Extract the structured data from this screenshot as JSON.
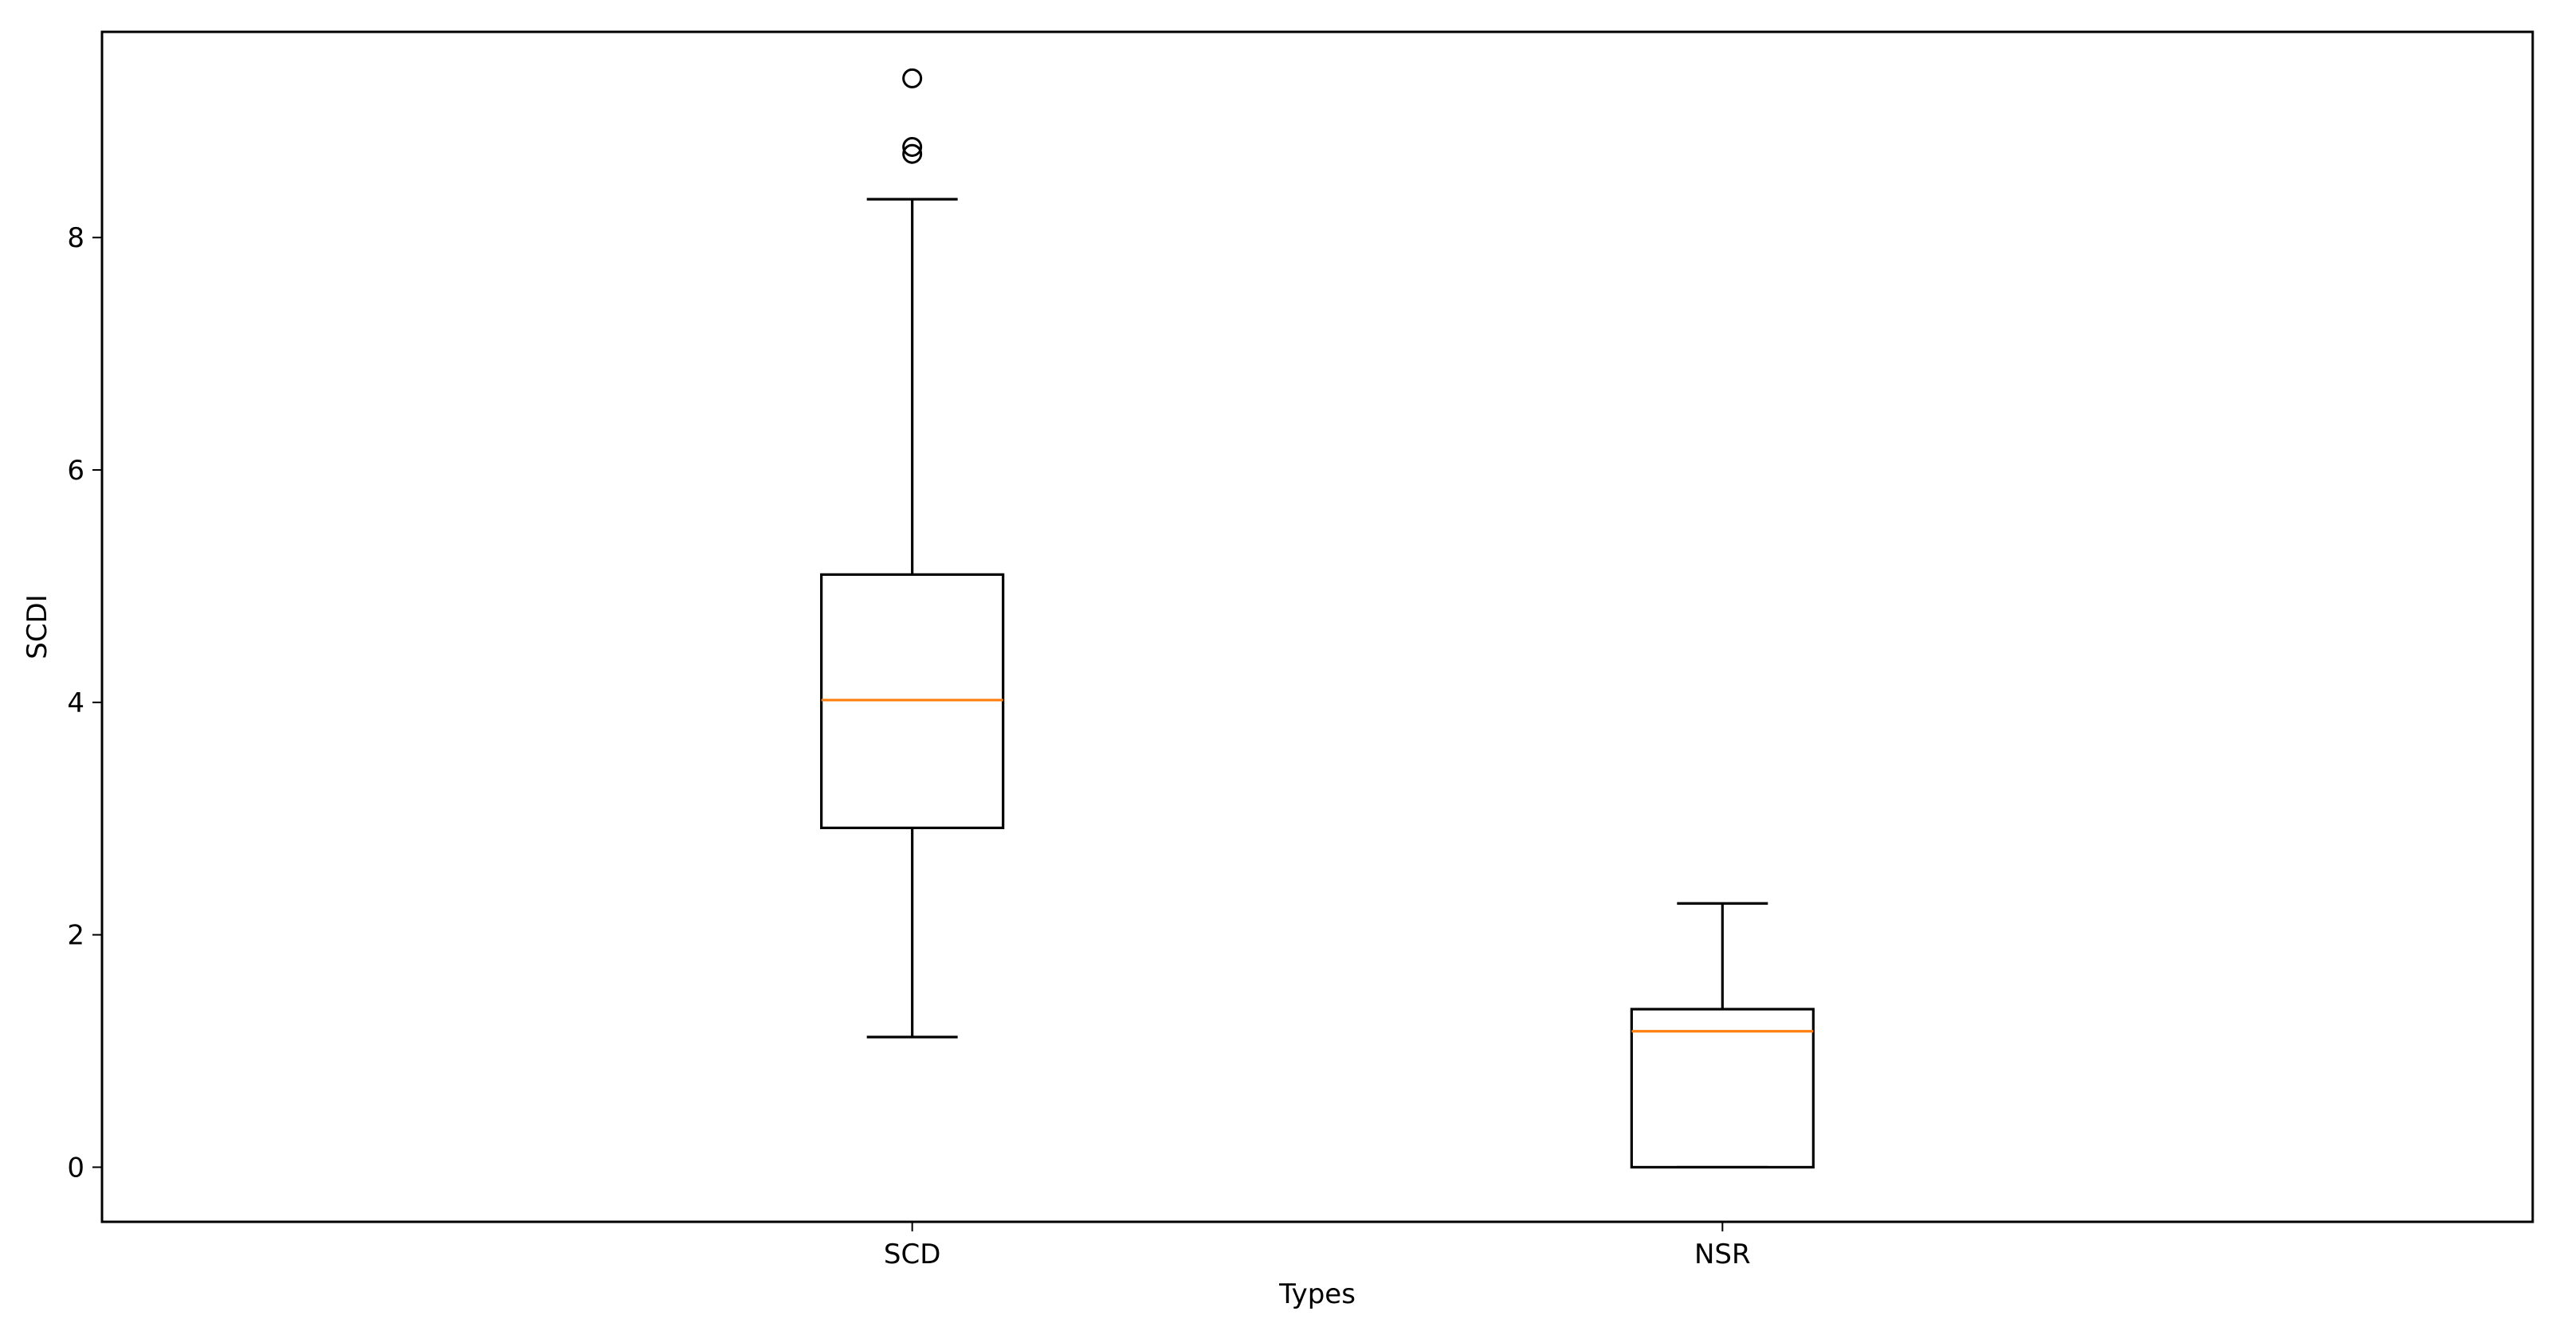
{
  "chart_data": {
    "type": "box",
    "title": "",
    "xlabel": "Types",
    "ylabel": "SCDI",
    "categories": [
      "SCD",
      "NSR"
    ],
    "ylim": [
      -0.47,
      9.77
    ],
    "yticks": [
      0,
      2,
      4,
      6,
      8
    ],
    "grid": false,
    "boxes": [
      {
        "category": "SCD",
        "whisker_low": 1.12,
        "q1": 2.92,
        "median": 4.02,
        "q3": 5.1,
        "whisker_high": 8.33,
        "outliers": [
          8.72,
          8.78,
          9.37
        ]
      },
      {
        "category": "NSR",
        "whisker_low": 0.0,
        "q1": 0.0,
        "median": 1.17,
        "q3": 1.36,
        "whisker_high": 2.27,
        "outliers": []
      }
    ],
    "colors": {
      "box": "#000000",
      "median": "#ff7f0e",
      "outlier": "#000000",
      "background": "#ffffff"
    }
  }
}
